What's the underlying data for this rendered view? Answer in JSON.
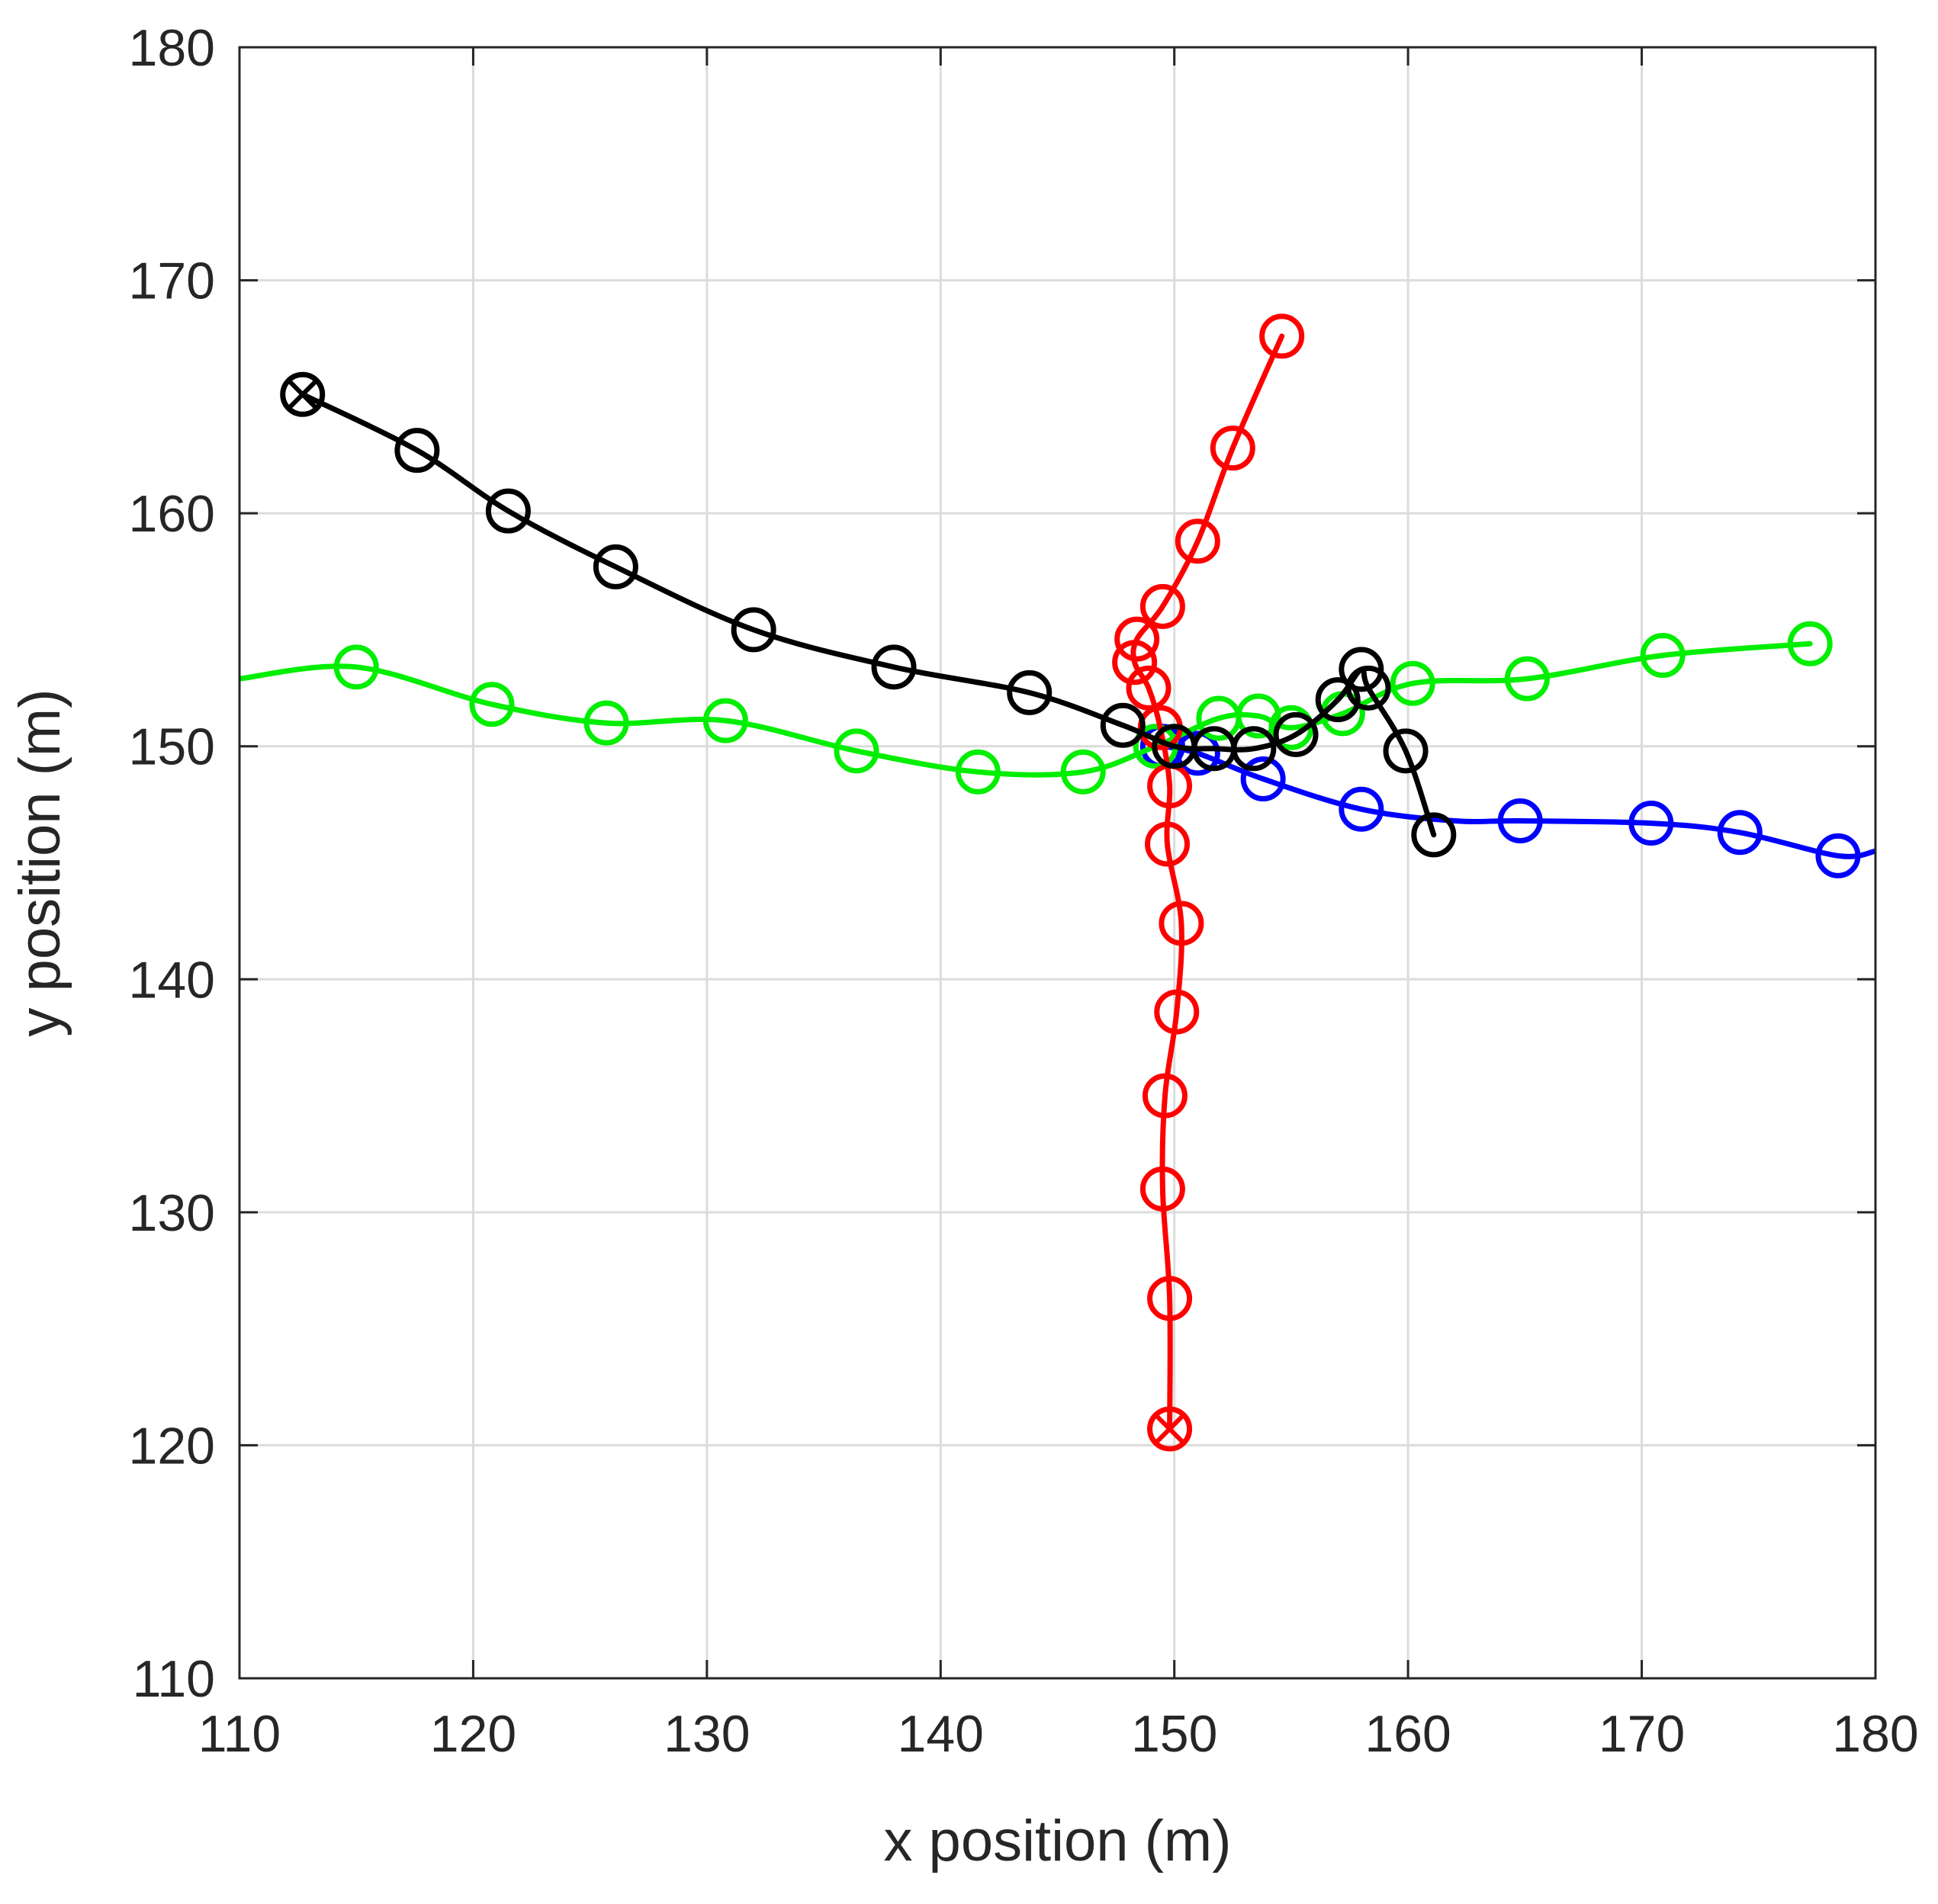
{
  "chart_data": {
    "type": "line",
    "title": "",
    "xlabel": "x position (m)",
    "ylabel": "y position (m)",
    "xlim": [
      110,
      180
    ],
    "ylim": [
      110,
      180
    ],
    "xticks": [
      110,
      120,
      130,
      140,
      150,
      160,
      170,
      180
    ],
    "yticks": [
      110,
      120,
      130,
      140,
      150,
      160,
      170,
      180
    ],
    "grid": true,
    "legend": "none",
    "marker": "circle",
    "series": [
      {
        "color": "#0000ff",
        "start_marker": "circle",
        "line": [
          [
            149.5,
            150.0
          ],
          [
            151.0,
            149.7
          ],
          [
            153.8,
            148.6
          ],
          [
            158.0,
            147.3
          ],
          [
            162.0,
            146.8
          ],
          [
            164.8,
            146.8
          ],
          [
            170.4,
            146.7
          ],
          [
            174.2,
            146.3
          ],
          [
            178.4,
            145.3
          ],
          [
            180.0,
            145.5
          ]
        ],
        "markers": [
          [
            149.5,
            150.0
          ],
          [
            151.0,
            149.7
          ],
          [
            153.8,
            148.6
          ],
          [
            158.0,
            147.3
          ],
          [
            164.8,
            146.8
          ],
          [
            170.4,
            146.7
          ],
          [
            174.2,
            146.3
          ],
          [
            178.4,
            145.3
          ]
        ]
      },
      {
        "color": "#00ee00",
        "start_marker": "circle",
        "line": [
          [
            110.0,
            152.9
          ],
          [
            115.0,
            153.4
          ],
          [
            120.8,
            151.8
          ],
          [
            125.7,
            151.0
          ],
          [
            130.8,
            151.1
          ],
          [
            136.4,
            149.8
          ],
          [
            141.6,
            148.9
          ],
          [
            146.1,
            148.9
          ],
          [
            149.2,
            150.0
          ],
          [
            151.9,
            151.2
          ],
          [
            153.6,
            151.3
          ],
          [
            155.0,
            150.8
          ],
          [
            157.2,
            151.4
          ],
          [
            160.2,
            152.7
          ],
          [
            165.1,
            152.9
          ],
          [
            170.9,
            153.9
          ],
          [
            177.2,
            154.4
          ]
        ],
        "markers": [
          [
            115.0,
            153.4
          ],
          [
            120.8,
            151.8
          ],
          [
            125.7,
            151.0
          ],
          [
            130.8,
            151.1
          ],
          [
            136.4,
            149.8
          ],
          [
            141.6,
            148.9
          ],
          [
            146.1,
            148.9
          ],
          [
            149.2,
            150.0
          ],
          [
            151.9,
            151.2
          ],
          [
            153.6,
            151.3
          ],
          [
            155.0,
            150.8
          ],
          [
            157.2,
            151.4
          ],
          [
            160.2,
            152.7
          ],
          [
            165.1,
            152.9
          ],
          [
            170.9,
            153.9
          ],
          [
            177.2,
            154.4
          ]
        ]
      },
      {
        "color": "#ff0000",
        "start_marker": "circle-x",
        "line": [
          [
            149.8,
            120.7
          ],
          [
            149.8,
            126.3
          ],
          [
            149.5,
            131.0
          ],
          [
            149.6,
            135.0
          ],
          [
            150.1,
            138.6
          ],
          [
            150.3,
            142.4
          ],
          [
            149.7,
            145.8
          ],
          [
            149.8,
            148.3
          ],
          [
            149.4,
            150.8
          ],
          [
            148.9,
            152.5
          ],
          [
            148.3,
            153.6
          ],
          [
            148.4,
            154.6
          ],
          [
            149.5,
            156.0
          ],
          [
            151.0,
            158.8
          ],
          [
            152.5,
            162.8
          ],
          [
            154.6,
            167.6
          ]
        ],
        "markers": [
          [
            149.8,
            120.7
          ],
          [
            149.8,
            126.3
          ],
          [
            149.5,
            131.0
          ],
          [
            149.6,
            135.0
          ],
          [
            150.1,
            138.6
          ],
          [
            150.3,
            142.4
          ],
          [
            149.7,
            145.8
          ],
          [
            149.8,
            148.3
          ],
          [
            149.4,
            150.8
          ],
          [
            148.9,
            152.5
          ],
          [
            148.3,
            153.6
          ],
          [
            148.4,
            154.6
          ],
          [
            149.5,
            156.0
          ],
          [
            151.0,
            158.8
          ],
          [
            152.5,
            162.8
          ],
          [
            154.6,
            167.6
          ]
        ]
      },
      {
        "color": "#000000",
        "start_marker": "circle-x",
        "line": [
          [
            112.7,
            165.1
          ],
          [
            117.6,
            162.7
          ],
          [
            121.5,
            160.1
          ],
          [
            126.1,
            157.7
          ],
          [
            132.0,
            155.0
          ],
          [
            138.0,
            153.4
          ],
          [
            143.8,
            152.3
          ],
          [
            147.8,
            150.9
          ],
          [
            150.0,
            150.0
          ],
          [
            151.7,
            149.9
          ],
          [
            153.4,
            149.9
          ],
          [
            155.2,
            150.5
          ],
          [
            157.0,
            152.0
          ],
          [
            158.0,
            153.3
          ],
          [
            158.3,
            152.5
          ],
          [
            159.9,
            149.8
          ],
          [
            161.1,
            146.2
          ]
        ],
        "markers": [
          [
            112.7,
            165.1
          ],
          [
            117.6,
            162.7
          ],
          [
            121.5,
            160.1
          ],
          [
            126.1,
            157.7
          ],
          [
            132.0,
            155.0
          ],
          [
            138.0,
            153.4
          ],
          [
            143.8,
            152.3
          ],
          [
            147.8,
            150.9
          ],
          [
            150.0,
            150.0
          ],
          [
            151.7,
            149.9
          ],
          [
            153.4,
            149.9
          ],
          [
            155.2,
            150.5
          ],
          [
            157.0,
            152.0
          ],
          [
            158.0,
            153.3
          ],
          [
            158.3,
            152.5
          ],
          [
            159.9,
            149.8
          ],
          [
            161.1,
            146.2
          ]
        ]
      }
    ]
  }
}
